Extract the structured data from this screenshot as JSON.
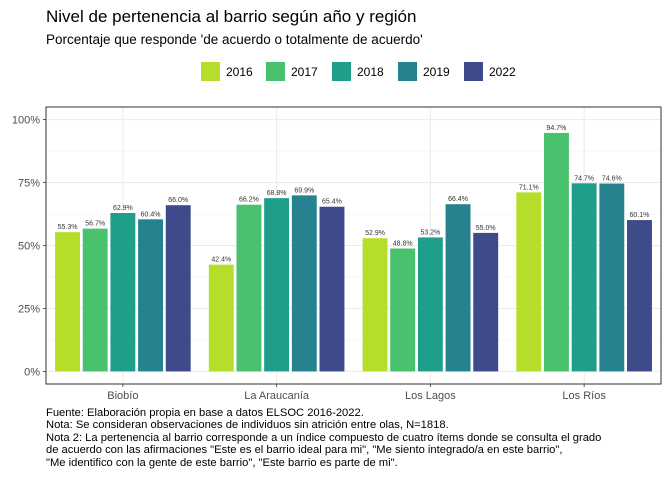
{
  "chart_data": {
    "type": "bar",
    "title": "Nivel de pertenencia al barrio según año y región",
    "subtitle": "Porcentaje que responde 'de acuerdo o totalmente de acuerdo'",
    "xlabel": "",
    "ylabel": "",
    "categories": [
      "Biobío",
      "La Araucanía",
      "Los Lagos",
      "Los Ríos"
    ],
    "series": [
      {
        "name": "2016",
        "color": "#b5de2b",
        "values": [
          55.3,
          42.4,
          52.9,
          71.1
        ],
        "labels": [
          "55.3%",
          "42.4%",
          "52.9%",
          "71.1%"
        ]
      },
      {
        "name": "2017",
        "color": "#4ac16d",
        "values": [
          56.7,
          66.2,
          48.8,
          94.7
        ],
        "labels": [
          "56.7%",
          "66.2%",
          "48.8%",
          "94.7%"
        ]
      },
      {
        "name": "2018",
        "color": "#1f9e89",
        "values": [
          62.9,
          68.8,
          53.2,
          74.7
        ],
        "labels": [
          "62.9%",
          "68.8%",
          "53.2%",
          "74.7%"
        ]
      },
      {
        "name": "2019",
        "color": "#26828e",
        "values": [
          60.4,
          69.9,
          66.4,
          74.6
        ],
        "labels": [
          "60.4%",
          "69.9%",
          "66.4%",
          "74.6%"
        ]
      },
      {
        "name": "2022",
        "color": "#3e4a89",
        "values": [
          66.0,
          65.4,
          55.0,
          60.1
        ],
        "labels": [
          "66.0%",
          "65.4%",
          "55.0%",
          "60.1%"
        ]
      }
    ],
    "ylim": [
      0,
      100
    ],
    "yticks": [
      0,
      25,
      50,
      75,
      100
    ],
    "ytick_labels": [
      "0%",
      "25%",
      "50%",
      "75%",
      "100%"
    ],
    "grid": true,
    "legend_position": "top"
  },
  "notes": [
    "Fuente: Elaboración propia en base a datos ELSOC 2016-2022.",
    "Nota: Se consideran observaciones de individuos sin atrición entre olas, N=1818.",
    "Nota 2: La pertenencia al barrio corresponde a un índice compuesto de cuatro ítems donde se consulta el grado",
    "de acuerdo con las afirmaciones \"Este es el barrio ideal para mi\", \"Me siento integrado/a en este barrio\",",
    "\"Me identifico con la gente de este barrio\", \"Este barrio es parte de mi\"."
  ]
}
